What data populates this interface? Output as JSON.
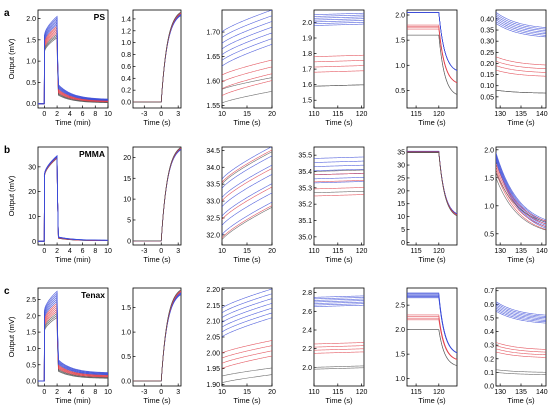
{
  "colors": {
    "blue": "#3b4bd8",
    "red": "#e0404a",
    "gray": "#555555",
    "axis": "#000000"
  },
  "rows": [
    {
      "label": "a",
      "material": "PS"
    },
    {
      "label": "b",
      "material": "PMMA"
    },
    {
      "label": "c",
      "material": "Tenax"
    }
  ],
  "chart_data": [
    {
      "row": 0,
      "col": 0,
      "type": "line",
      "title": "PS",
      "ylabel": "Output (mV)",
      "xlabel": "Time (min)",
      "xlim": [
        -1,
        10
      ],
      "ylim": [
        -0.1,
        2.2
      ],
      "xticks": [
        0,
        2,
        4,
        6,
        8,
        10
      ],
      "yticks": [
        "0.0",
        "0.5",
        "1.0",
        "1.5",
        "2.0"
      ],
      "shape": "full",
      "base": 0,
      "rise": [
        1.55,
        2.05
      ],
      "drop": [
        0.2,
        0.45
      ],
      "end": [
        0.02,
        0.1
      ]
    },
    {
      "row": 0,
      "col": 1,
      "type": "line",
      "xlabel": "Time (s)",
      "xlim": [
        -5,
        3.5
      ],
      "ylim": [
        -0.1,
        1.55
      ],
      "xticks": [
        -3,
        0,
        3
      ],
      "yticks": [
        "0.0",
        "0.2",
        "0.4",
        "0.6",
        "0.8",
        "1.0",
        "1.2",
        "1.4"
      ],
      "shape": "onset",
      "top": [
        1.42,
        1.48
      ]
    },
    {
      "row": 0,
      "col": 2,
      "type": "line",
      "xlabel": "Time (s)",
      "xlim": [
        10,
        20
      ],
      "ylim": [
        1.545,
        1.745
      ],
      "xticks": [
        10,
        15,
        20
      ],
      "yticks": [
        "1.55",
        "1.60",
        "1.65",
        "1.70"
      ],
      "shape": "rising",
      "groups": {
        "blue": [
          1.63,
          1.73
        ],
        "red": [
          1.57,
          1.63
        ],
        "gray": [
          1.555,
          1.595
        ]
      }
    },
    {
      "row": 0,
      "col": 3,
      "type": "line",
      "xlabel": "Time (s)",
      "xlim": [
        110,
        120.5
      ],
      "ylim": [
        1.45,
        2.08
      ],
      "xticks": [
        110,
        115,
        120
      ],
      "yticks": [
        "1.5",
        "1.6",
        "1.7",
        "1.8",
        "1.9",
        "2.0"
      ],
      "shape": "flat",
      "groups": {
        "blue": [
          1.98,
          2.05
        ],
        "red": [
          1.68,
          1.78
        ],
        "gray": [
          1.59,
          1.59
        ]
      }
    },
    {
      "row": 0,
      "col": 4,
      "type": "line",
      "xlabel": "Time (s)",
      "xlim": [
        113,
        124
      ],
      "ylim": [
        0.15,
        2.1
      ],
      "xticks": [
        115,
        120
      ],
      "yticks": [
        "0.5",
        "1.0",
        "1.5",
        "2.0"
      ],
      "shape": "drop",
      "groups": {
        "blue": [
          2.05,
          2.05
        ],
        "red": [
          1.72,
          1.8
        ],
        "gray": [
          1.6,
          1.6
        ]
      },
      "end": [
        0.3,
        0.9
      ]
    },
    {
      "row": 0,
      "col": 5,
      "type": "line",
      "xlabel": "Time (s)",
      "xlim": [
        129,
        141
      ],
      "ylim": [
        0.0,
        0.44
      ],
      "xticks": [
        130,
        135,
        140
      ],
      "yticks": [
        "0.05",
        "0.10",
        "0.15",
        "0.20",
        "0.25",
        "0.30",
        "0.35",
        "0.40"
      ],
      "shape": "decay",
      "groups": {
        "blue": [
          0.38,
          0.43
        ],
        "red": [
          0.17,
          0.23
        ],
        "gray": [
          0.08,
          0.08
        ]
      }
    },
    {
      "row": 1,
      "col": 0,
      "type": "line",
      "title": "PMMA",
      "ylabel": "Output (mV)",
      "xlabel": "Time (min)",
      "xlim": [
        -1,
        10
      ],
      "ylim": [
        -1.5,
        38
      ],
      "xticks": [
        0,
        2,
        4,
        6,
        8,
        10
      ],
      "yticks": [
        "0",
        "10",
        "20",
        "30"
      ],
      "shape": "full",
      "base": 0,
      "rise": [
        33.5,
        34.5
      ],
      "drop": [
        1.2,
        1.8
      ],
      "end": [
        0.2,
        0.4
      ]
    },
    {
      "row": 1,
      "col": 1,
      "type": "line",
      "xlabel": "Time (s)",
      "xlim": [
        -5,
        3.5
      ],
      "ylim": [
        -1,
        22.5
      ],
      "xticks": [
        -3,
        0,
        3
      ],
      "yticks": [
        "0",
        "5",
        "10",
        "15",
        "20"
      ],
      "shape": "onset",
      "top": [
        21.3,
        21.9
      ]
    },
    {
      "row": 1,
      "col": 2,
      "type": "line",
      "xlabel": "Time (s)",
      "xlim": [
        10,
        20
      ],
      "ylim": [
        31.7,
        34.6
      ],
      "xticks": [
        10,
        15,
        20
      ],
      "yticks": [
        "32.0",
        "32.5",
        "33.0",
        "33.5",
        "34.0",
        "34.5"
      ],
      "shape": "rising",
      "groups": {
        "blue": [
          32.0,
          34.35
        ],
        "red": [
          31.9,
          34.25
        ],
        "gray": [
          31.85,
          34.2
        ]
      }
    },
    {
      "row": 1,
      "col": 3,
      "type": "line",
      "xlabel": "Time (s)",
      "xlim": [
        110,
        120.5
      ],
      "ylim": [
        34.95,
        35.55
      ],
      "xticks": [
        110,
        115,
        120
      ],
      "yticks": [
        "35.0",
        "35.1",
        "35.2",
        "35.3",
        "35.4",
        "35.5"
      ],
      "shape": "flat",
      "groups": {
        "blue": [
          35.33,
          35.48
        ],
        "red": [
          35.25,
          35.38
        ],
        "gray": [
          35.27,
          35.4
        ]
      }
    },
    {
      "row": 1,
      "col": 4,
      "type": "line",
      "xlabel": "Time (s)",
      "xlim": [
        113,
        124
      ],
      "ylim": [
        -1,
        37
      ],
      "xticks": [
        115,
        120
      ],
      "yticks": [
        "0",
        "5",
        "10",
        "15",
        "20",
        "25",
        "30",
        "35"
      ],
      "shape": "drop",
      "groups": {
        "blue": [
          35.0,
          35.4
        ],
        "red": [
          34.8,
          35.2
        ],
        "gray": [
          34.8,
          35.0
        ]
      },
      "end": [
        9,
        10
      ]
    },
    {
      "row": 1,
      "col": 5,
      "type": "line",
      "xlabel": "Time (s)",
      "xlim": [
        129,
        141
      ],
      "ylim": [
        0.3,
        2.05
      ],
      "xticks": [
        130,
        135,
        140
      ],
      "yticks": [
        "0.5",
        "1.0",
        "1.5",
        "2.0"
      ],
      "shape": "decay",
      "groups": {
        "blue": [
          1.8,
          1.95
        ],
        "red": [
          1.6,
          1.75
        ],
        "gray": [
          1.5,
          1.6
        ]
      },
      "end": [
        0.45,
        0.6
      ]
    },
    {
      "row": 2,
      "col": 0,
      "type": "line",
      "title": "Tenax",
      "ylabel": "Output (mV)",
      "xlabel": "Time (min)",
      "xlim": [
        -1,
        10
      ],
      "ylim": [
        -0.15,
        2.85
      ],
      "xticks": [
        0,
        2,
        4,
        6,
        8,
        10
      ],
      "yticks": [
        "0.0",
        "0.5",
        "1.0",
        "1.5",
        "2.0",
        "2.5"
      ],
      "shape": "full",
      "base": 0,
      "rise": [
        1.95,
        2.75
      ],
      "drop": [
        0.3,
        0.65
      ],
      "end": [
        0.08,
        0.25
      ]
    },
    {
      "row": 2,
      "col": 1,
      "type": "line",
      "xlabel": "Time (s)",
      "xlim": [
        -5,
        3.5
      ],
      "ylim": [
        -0.1,
        1.9
      ],
      "xticks": [
        -3,
        0,
        3
      ],
      "yticks": [
        "0.0",
        "0.5",
        "1.0",
        "1.5"
      ],
      "shape": "onset",
      "top": [
        1.72,
        1.82
      ]
    },
    {
      "row": 2,
      "col": 2,
      "type": "line",
      "xlabel": "Time (s)",
      "xlim": [
        10,
        20
      ],
      "ylim": [
        1.895,
        2.205
      ],
      "xticks": [
        10,
        15,
        20
      ],
      "yticks": [
        "1.90",
        "1.95",
        "2.00",
        "2.05",
        "2.10",
        "2.15",
        "2.20"
      ],
      "shape": "rising",
      "groups": {
        "blue": [
          2.05,
          2.18
        ],
        "red": [
          1.95,
          2.02
        ],
        "gray": [
          1.905,
          1.935
        ]
      }
    },
    {
      "row": 2,
      "col": 3,
      "type": "line",
      "xlabel": "Time (s)",
      "xlim": [
        110,
        120.5
      ],
      "ylim": [
        1.8,
        2.85
      ],
      "xticks": [
        110,
        115,
        120
      ],
      "yticks": [
        "2.0",
        "2.2",
        "2.4",
        "2.6",
        "2.8"
      ],
      "shape": "flat",
      "groups": {
        "blue": [
          2.65,
          2.75
        ],
        "red": [
          2.15,
          2.25
        ],
        "gray": [
          1.98,
          2.0
        ]
      }
    },
    {
      "row": 2,
      "col": 4,
      "type": "line",
      "xlabel": "Time (s)",
      "xlim": [
        113,
        124
      ],
      "ylim": [
        0.85,
        2.85
      ],
      "xticks": [
        115,
        120
      ],
      "yticks": [
        "1.0",
        "1.5",
        "2.0",
        "2.5"
      ],
      "shape": "drop",
      "groups": {
        "blue": [
          2.65,
          2.75
        ],
        "red": [
          2.2,
          2.3
        ],
        "gray": [
          2.0,
          2.0
        ]
      },
      "end": [
        1.2,
        1.5
      ]
    },
    {
      "row": 2,
      "col": 5,
      "type": "line",
      "xlabel": "Time (s)",
      "xlim": [
        129,
        141
      ],
      "ylim": [
        0.0,
        0.72
      ],
      "xticks": [
        130,
        135,
        140
      ],
      "yticks": [
        "0.0",
        "0.1",
        "0.2",
        "0.3",
        "0.4",
        "0.5",
        "0.6",
        "0.7"
      ],
      "shape": "decay",
      "groups": {
        "blue": [
          0.55,
          0.62
        ],
        "red": [
          0.25,
          0.32
        ],
        "gray": [
          0.1,
          0.12
        ]
      }
    }
  ]
}
